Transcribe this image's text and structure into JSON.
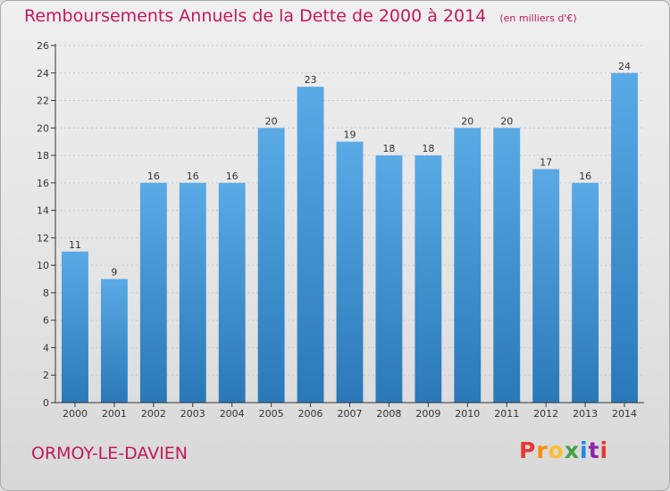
{
  "header": {
    "title": "Remboursements Annuels de la Dette de 2000 à 2014",
    "subtitle": "(en milliers d'€)"
  },
  "footer": {
    "commune": "ORMOY-LE-DAVIEN",
    "brand": "Proxiti",
    "brand_letters": [
      {
        "ch": "P",
        "color": "#e53935"
      },
      {
        "ch": "r",
        "color": "#fb8c00"
      },
      {
        "ch": "o",
        "color": "#fbc02d"
      },
      {
        "ch": "x",
        "color": "#43a047"
      },
      {
        "ch": "i",
        "color": "#1e88e5"
      },
      {
        "ch": "t",
        "color": "#8e24aa"
      },
      {
        "ch": "i",
        "color": "#e53935"
      }
    ]
  },
  "colors": {
    "bar_top": "#5aaae6",
    "bar_bottom": "#2a78b8",
    "axis": "#333333",
    "grid": "#c8c8c8",
    "title": "#c2185b"
  },
  "chart_data": {
    "type": "bar",
    "title": "Remboursements Annuels de la Dette de 2000 à 2014",
    "subtitle": "(en milliers d'€)",
    "categories": [
      "2000",
      "2001",
      "2002",
      "2003",
      "2004",
      "2005",
      "2006",
      "2007",
      "2008",
      "2009",
      "2010",
      "2011",
      "2012",
      "2013",
      "2014"
    ],
    "values": [
      11,
      9,
      16,
      16,
      16,
      20,
      23,
      19,
      18,
      18,
      20,
      20,
      17,
      16,
      24
    ],
    "xlabel": "",
    "ylabel": "",
    "ylim": [
      0,
      26
    ],
    "yticks": [
      0,
      2,
      4,
      6,
      8,
      10,
      12,
      14,
      16,
      18,
      20,
      22,
      24,
      26
    ],
    "grid": true,
    "data_labels": true
  }
}
